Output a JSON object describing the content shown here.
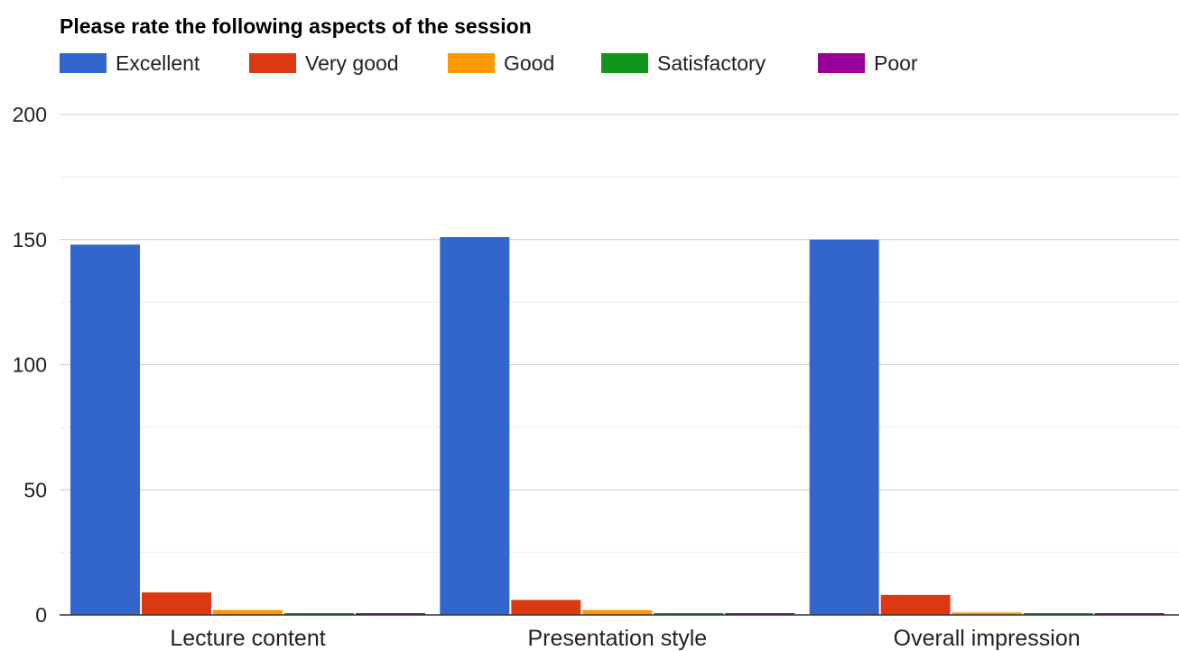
{
  "chart_data": {
    "type": "bar",
    "title": "Please rate the following aspects of the session",
    "xlabel": "",
    "ylabel": "",
    "categories": [
      "Lecture content",
      "Presentation style",
      "Overall impression"
    ],
    "series": [
      {
        "name": "Excellent",
        "color": "#3366cc",
        "values": [
          148,
          151,
          150
        ]
      },
      {
        "name": "Very good",
        "color": "#dc3912",
        "values": [
          9,
          6,
          8
        ]
      },
      {
        "name": "Good",
        "color": "#ff9900",
        "values": [
          2,
          2,
          1
        ]
      },
      {
        "name": "Satisfactory",
        "color": "#109618",
        "values": [
          0,
          0,
          0
        ]
      },
      {
        "name": "Poor",
        "color": "#990099",
        "values": [
          0,
          0,
          0
        ]
      }
    ],
    "ylim": [
      0,
      200
    ],
    "yticks": [
      "0",
      "50",
      "100",
      "150",
      "200"
    ],
    "grid": true,
    "legend_position": "top-left"
  }
}
